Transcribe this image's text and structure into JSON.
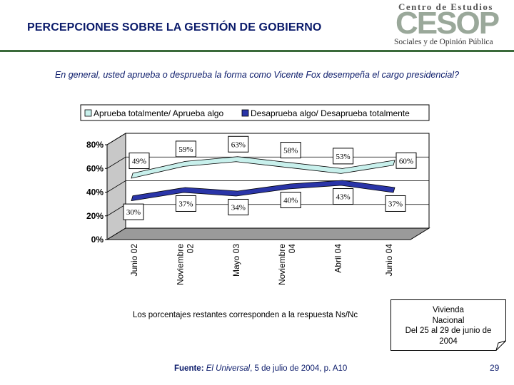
{
  "header": {
    "title": "PERCEPCIONES SOBRE LA GESTIÓN DE GOBIERNO",
    "logo_top": "Centro de Estudios",
    "logo_big": "CESOP",
    "logo_bottom": "Sociales y de Opinión Pública"
  },
  "question": "En general, usted aprueba o desprueba la forma como Vicente Fox desempeña el cargo presidencial?",
  "chart_data": {
    "type": "line",
    "title": "",
    "categories": [
      "Junio 02",
      "Noviembre 02",
      "Mayo 03",
      "Noviembre 04",
      "Abril 04",
      "Junio 04"
    ],
    "category_lines": [
      [
        "Junio 02"
      ],
      [
        "Noviembre",
        "02"
      ],
      [
        "Mayo 03"
      ],
      [
        "Noviembre",
        "04"
      ],
      [
        "Abril 04"
      ],
      [
        "Junio 04"
      ]
    ],
    "ylim": [
      0,
      80
    ],
    "yticks": [
      "0%",
      "20%",
      "40%",
      "60%",
      "80%"
    ],
    "ytick_values": [
      0,
      20,
      40,
      60,
      80
    ],
    "grid": true,
    "legend_position": "top",
    "series": [
      {
        "name": "Aprueba totalmente/ Aprueba algo",
        "values": [
          49,
          59,
          63,
          58,
          53,
          60
        ],
        "labels": [
          "49%",
          "59%",
          "63%",
          "58%",
          "53%",
          "60%"
        ],
        "color": "#c8f0ec",
        "label_dir": [
          "up",
          "up",
          "up",
          "up",
          "up",
          "right"
        ]
      },
      {
        "name": "Desaprueba algo/ Desaprueba totalmente",
        "values": [
          30,
          37,
          34,
          40,
          43,
          37
        ],
        "labels": [
          "30%",
          "37%",
          "34%",
          "40%",
          "43%",
          "37%"
        ],
        "color": "#2a35a8",
        "label_dir": [
          "down",
          "down",
          "down",
          "down",
          "down",
          "down"
        ]
      }
    ]
  },
  "footer": {
    "note": "Los porcentajes restantes corresponden a la respuesta Ns/Nc",
    "source_label": "Fuente:",
    "source_paper": "El Universal",
    "source_rest": ", 5 de julio de 2004, p. A10",
    "box_lines": [
      "Vivienda",
      "Nacional",
      "Del 25 al 29 de junio de",
      "2004"
    ],
    "page_number": "29"
  }
}
